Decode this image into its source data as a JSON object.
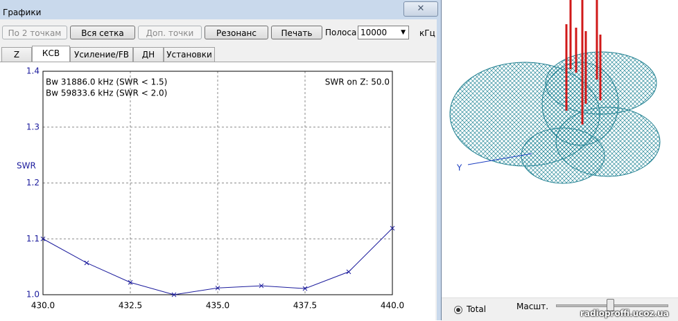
{
  "window": {
    "title": "Графики",
    "buttons": [
      "По 2 точкам",
      "Вся сетка",
      "Доп. точки",
      "Резонанс",
      "Печать"
    ],
    "band_label": "Полоса",
    "band_value": "10000",
    "band_unit": "кГц",
    "tabs": [
      "Z",
      "КСВ",
      "Усиление/FB",
      "ДН",
      "Установки"
    ]
  },
  "chart_data": {
    "type": "line",
    "ylabel": "SWR",
    "annotations": [
      "Bw 31886.0 kHz (SWR < 1.5)",
      "Bw 59833.6 kHz (SWR < 2.0)",
      "SWR on Z: 50.0"
    ],
    "x": [
      430,
      431.25,
      432.5,
      433.75,
      435,
      436.25,
      437.5,
      438.75,
      440
    ],
    "values": [
      1.1,
      1.057,
      1.022,
      1.0,
      1.012,
      1.016,
      1.011,
      1.041,
      1.119
    ],
    "color": "#1a1a9c",
    "xlim": [
      430,
      440
    ],
    "ylim": [
      1.0,
      1.4
    ],
    "xticks": [
      {
        "value": 430,
        "label": "430.0"
      },
      432.5,
      {
        "value": 435,
        "label": "435.0"
      },
      437.5,
      {
        "value": 440,
        "label": "440.0"
      }
    ],
    "yticks": [
      {
        "value": 1.0,
        "label": "1.0"
      },
      1.1,
      1.2,
      1.3,
      1.4
    ],
    "grid": true
  },
  "panel": {
    "axis_label": "Y",
    "radio": "Total",
    "scale_label": "Масшт.",
    "watermark": "radioproffi.ucoz.ua"
  }
}
